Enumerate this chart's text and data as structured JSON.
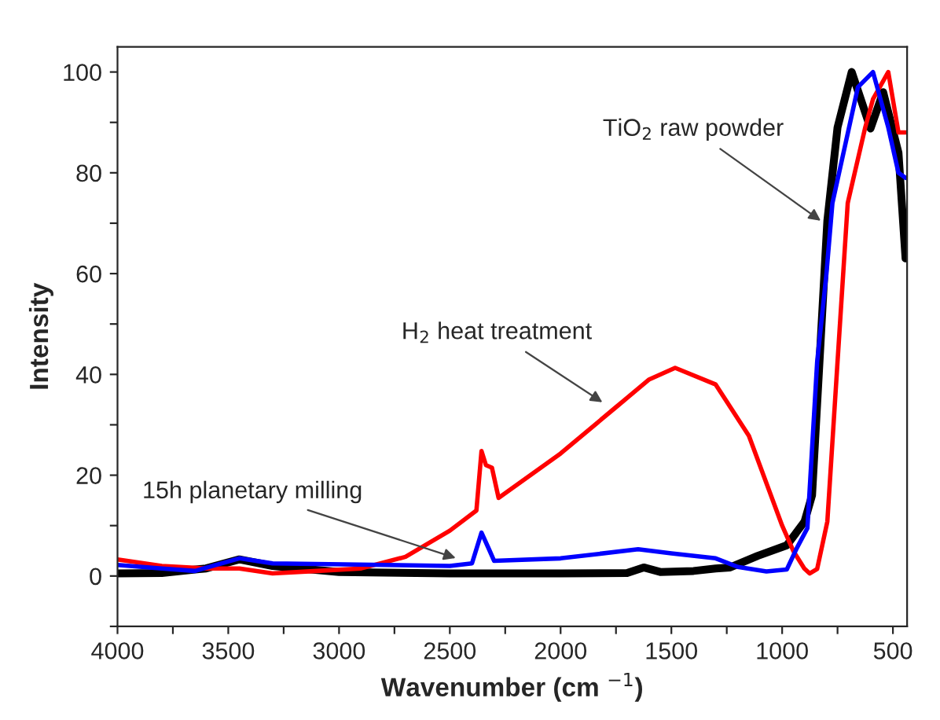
{
  "chart_data": {
    "type": "line",
    "xlabel": "Wavenumber (cm $^{−1}$)",
    "ylabel": "Intensity",
    "xlim": [
      4000,
      436
    ],
    "ylim": [
      -10,
      105
    ],
    "xticks": [
      4000,
      {
        "value": 3750,
        "label": null
      },
      3500,
      {
        "value": 3250,
        "label": null
      },
      3000,
      {
        "value": 2750,
        "label": null
      },
      2500,
      {
        "value": 2250,
        "label": null
      },
      2000,
      {
        "value": 1750,
        "label": null
      },
      1500,
      {
        "value": 1250,
        "label": null
      },
      1000,
      {
        "value": 750,
        "label": null
      },
      500
    ],
    "yticks": [
      {
        "value": -10,
        "label": null
      },
      0,
      {
        "value": 10,
        "label": null
      },
      20,
      {
        "value": 30,
        "label": null
      },
      40,
      {
        "value": 50,
        "label": null
      },
      60,
      {
        "value": 70,
        "label": null
      },
      80,
      {
        "value": 90,
        "label": null
      },
      100
    ],
    "grid": false,
    "legend": false,
    "series": [
      {
        "color": "#000000",
        "x": [
          4000,
          3800,
          3600,
          3450,
          3300,
          3000,
          2500,
          2000,
          1700,
          1625,
          1550,
          1400,
          1300,
          1235,
          1110,
          979,
          899,
          865,
          796,
          750,
          686,
          601,
          544,
          475,
          443
        ],
        "values": [
          0.5,
          0.6,
          1.5,
          3.3,
          2,
          0.8,
          0.5,
          0.5,
          0.6,
          1.7,
          0.8,
          1,
          1.5,
          1.7,
          4,
          6.1,
          10.8,
          16,
          70.5,
          89,
          100,
          88.8,
          96,
          84,
          63
        ]
      },
      {
        "color": "#ff0000",
        "x": [
          4000,
          3800,
          3600,
          3450,
          3300,
          3100,
          2900,
          2700,
          2500,
          2380,
          2357,
          2337,
          2310,
          2280,
          2000,
          1750,
          1600,
          1483,
          1300,
          1150,
          1000,
          950,
          900,
          876,
          842,
          796,
          750,
          704,
          625,
          590,
          521,
          475,
          443
        ],
        "values": [
          3.3,
          2,
          1.5,
          1.5,
          0.5,
          1,
          1.5,
          3.8,
          9,
          13,
          24.8,
          22,
          21.5,
          15.5,
          24.3,
          33.5,
          39,
          41.3,
          38,
          27.8,
          10,
          5,
          1.5,
          0.5,
          1.4,
          10.8,
          42.5,
          74,
          89,
          94.6,
          100,
          88,
          88
        ]
      },
      {
        "color": "#0000ff",
        "x": [
          4000,
          3800,
          3650,
          3450,
          3300,
          2500,
          2400,
          2357,
          2320,
          2300,
          2000,
          1650,
          1500,
          1300,
          1200,
          1071,
          979,
          933,
          886,
          842,
          800,
          773,
          658,
          590,
          521,
          475,
          443
        ],
        "values": [
          2.2,
          1.5,
          1,
          3.5,
          2.5,
          2,
          2.5,
          8.6,
          5,
          3,
          3.5,
          5.3,
          4.5,
          3.5,
          1.8,
          0.9,
          1.3,
          5.6,
          9.5,
          42.5,
          60,
          74,
          97,
          100,
          89,
          80,
          79
        ]
      }
    ],
    "annotations": [
      {
        "text": "TiO$_{2}$ raw powder",
        "x": 810,
        "y": 70
      },
      {
        "text": "H$_{2}$ heat treatment",
        "x": 1795,
        "y": 34
      },
      {
        "text": "15h planetary milling",
        "x": 2455,
        "y": 3.3
      }
    ]
  }
}
